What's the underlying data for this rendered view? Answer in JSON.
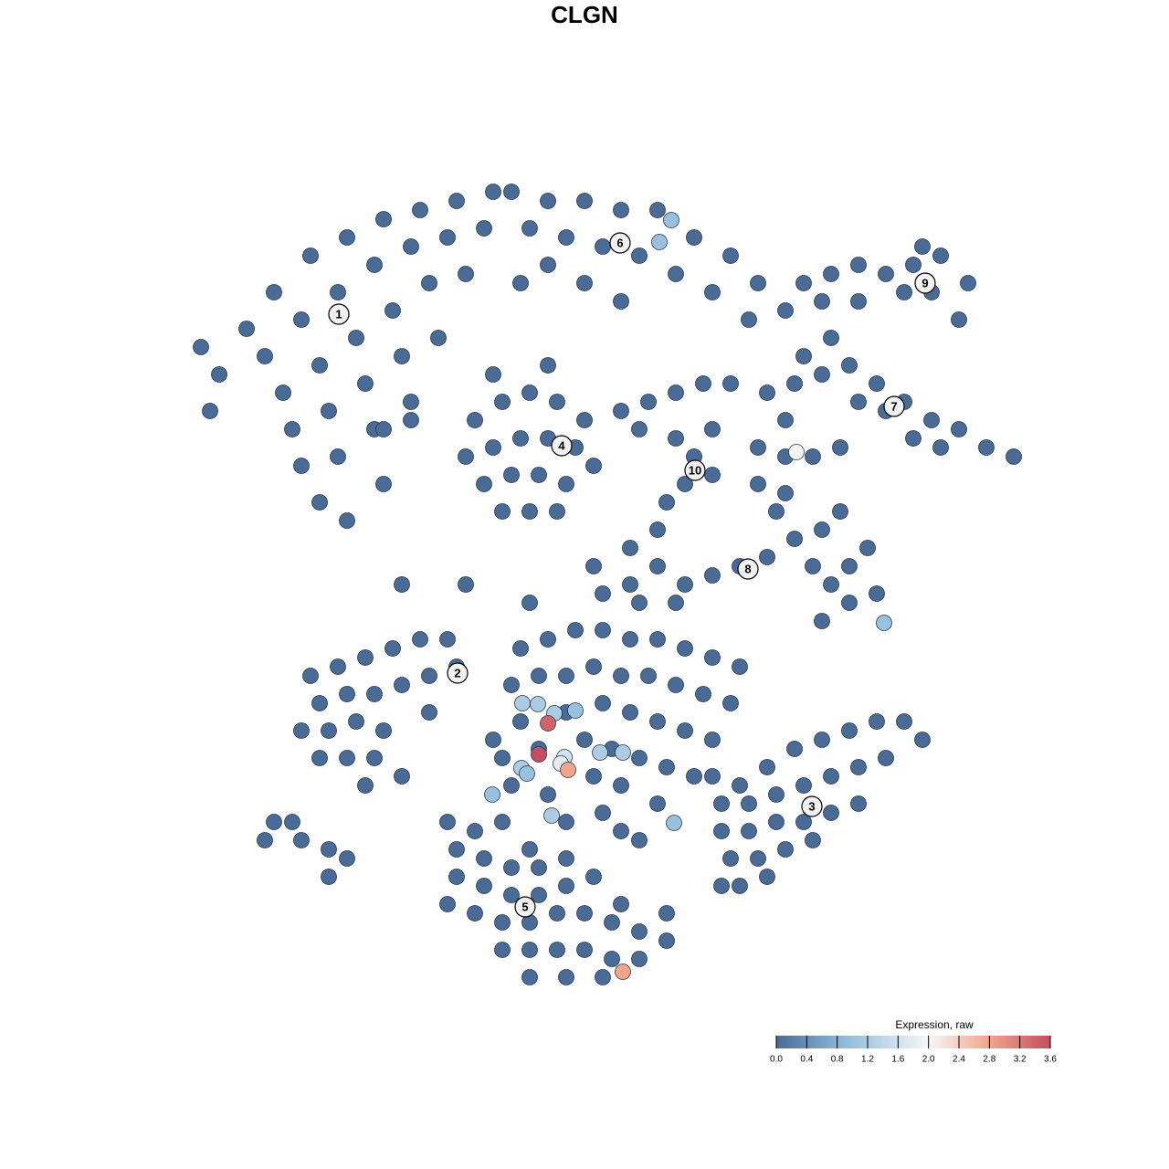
{
  "chart_data": {
    "type": "scatter",
    "title": "CLGN",
    "xlim": [
      0,
      128
    ],
    "ylim": [
      128,
      0
    ],
    "colorbar": {
      "title": "Expression, raw",
      "clim": [
        0,
        3.6
      ],
      "colorscale": [
        [
          0,
          "#4a6b95"
        ],
        [
          0.9,
          "#8fbcdb"
        ],
        [
          2.0,
          "#f7f7f7"
        ],
        [
          2.8,
          "#f0a58c"
        ],
        [
          3.6,
          "#c44e5f"
        ]
      ],
      "ticks": [
        {
          "value": 0,
          "label": "0.0"
        },
        {
          "value": 0.4,
          "label": "0.4"
        },
        {
          "value": 0.8,
          "label": "0.8"
        },
        {
          "value": 1.2,
          "label": "1.2"
        },
        {
          "value": 1.6,
          "label": "1.6"
        },
        {
          "value": 2.0,
          "label": "2.0"
        },
        {
          "value": 2.4,
          "label": "2.4"
        },
        {
          "value": 2.8,
          "label": "2.8"
        },
        {
          "value": 3.2,
          "label": "3.2"
        },
        {
          "value": 3.6,
          "label": "3.6"
        }
      ]
    },
    "annotations": [
      {
        "text": "1",
        "x": 37.1,
        "y": 34.4
      },
      {
        "text": "2",
        "x": 50.1,
        "y": 73.7
      },
      {
        "text": "3",
        "x": 88.9,
        "y": 88.3
      },
      {
        "text": "4",
        "x": 61.5,
        "y": 48.8
      },
      {
        "text": "5",
        "x": 57.5,
        "y": 99.3
      },
      {
        "text": "6",
        "x": 67.9,
        "y": 26.6
      },
      {
        "text": "7",
        "x": 97.9,
        "y": 44.5
      },
      {
        "text": "8",
        "x": 81.9,
        "y": 62.3
      },
      {
        "text": "9",
        "x": 101.3,
        "y": 31.0
      },
      {
        "text": "10",
        "x": 76.1,
        "y": 51.5
      }
    ],
    "points": {
      "x": [
        24,
        27,
        30,
        34,
        38,
        42,
        46,
        50,
        54,
        29,
        33,
        37,
        41,
        45,
        49,
        53,
        31,
        35,
        39,
        43,
        47,
        51,
        32,
        36,
        40,
        44,
        48,
        33,
        37,
        41,
        45,
        35,
        38,
        42,
        22,
        23,
        56,
        60,
        64,
        68,
        72,
        76,
        80,
        83,
        58,
        62,
        66,
        70,
        74,
        78,
        82,
        60,
        64,
        68,
        86,
        57,
        52,
        55,
        58,
        61,
        64,
        51,
        54,
        57,
        60,
        63,
        65,
        53,
        56,
        59,
        62,
        55,
        58,
        61,
        54,
        60,
        68,
        71,
        74,
        77,
        80,
        74,
        76,
        78,
        75,
        78,
        73,
        70,
        84,
        87,
        90,
        93,
        96,
        99,
        102,
        105,
        108,
        111,
        88,
        91,
        94,
        97,
        100,
        103,
        86,
        83,
        86,
        89,
        92,
        88,
        91,
        94,
        97,
        100,
        103,
        106,
        105,
        102,
        99,
        101,
        90,
        94,
        83,
        85,
        87,
        89,
        91,
        93,
        96,
        90,
        93,
        95,
        86,
        92,
        90,
        84,
        81,
        78,
        75,
        72,
        69,
        66,
        70,
        74,
        34,
        37,
        40,
        43,
        46,
        49,
        35,
        38,
        41,
        44,
        47,
        33,
        36,
        39,
        42,
        35,
        38,
        41,
        40,
        44,
        47,
        50,
        57,
        60,
        63,
        66,
        69,
        72,
        75,
        78,
        81,
        56,
        59,
        62,
        65,
        68,
        71,
        74,
        77,
        80,
        57,
        62,
        66,
        69,
        72,
        75,
        78,
        55,
        59,
        64,
        67,
        70,
        73,
        76,
        56,
        60,
        65,
        68,
        72,
        62,
        66,
        54,
        58,
        68,
        70,
        78,
        81,
        84,
        87,
        90,
        93,
        96,
        99,
        101,
        79,
        82,
        85,
        88,
        91,
        94,
        97,
        79,
        82,
        85,
        88,
        91,
        94,
        80,
        83,
        86,
        89,
        81,
        84,
        79,
        49,
        52,
        55,
        50,
        53,
        56,
        59,
        62,
        50,
        53,
        56,
        59,
        62,
        65,
        68,
        52,
        55,
        58,
        61,
        64,
        67,
        70,
        73,
        55,
        58,
        61,
        64,
        67,
        70,
        58,
        62,
        66,
        73,
        49,
        30,
        29,
        33,
        36,
        36,
        38,
        32,
        44,
        51,
        58,
        69,
        72,
        45,
        42,
        65,
        73.5,
        72.2,
        87.2,
        96.8,
        57.2,
        58.9,
        60.7,
        63.0,
        60.0,
        59.0,
        61.8,
        61.4,
        62.2,
        57.1,
        57.7,
        65.7,
        68.2,
        53.9,
        60.4,
        73.8,
        68.2
      ],
      "y": [
        41,
        36,
        32,
        28,
        26,
        24,
        23,
        22,
        21,
        39,
        35,
        32,
        29,
        27,
        26,
        25,
        43,
        40,
        37,
        34,
        31,
        30,
        47,
        45,
        42,
        39,
        37,
        51,
        50,
        47,
        44,
        55,
        57,
        53,
        38,
        45,
        21,
        22,
        22,
        23,
        23,
        26,
        28,
        31,
        25,
        26,
        27,
        28,
        30,
        32,
        35,
        29,
        31,
        33,
        34,
        31,
        46,
        44,
        43,
        44,
        46,
        50,
        49,
        48,
        48,
        49,
        51,
        53,
        52,
        52,
        53,
        56,
        56,
        56,
        41,
        40,
        45,
        44,
        43,
        42,
        42,
        48,
        50,
        47,
        53,
        52,
        55,
        47,
        43,
        42,
        41,
        40,
        42,
        44,
        46,
        47,
        49,
        50,
        39,
        37,
        44,
        45,
        48,
        49,
        46,
        49,
        50,
        50,
        49,
        31,
        30,
        29,
        30,
        29,
        28,
        31,
        35,
        32,
        32,
        27,
        33,
        33,
        53,
        56,
        59,
        62,
        64,
        66,
        65,
        58,
        62,
        60,
        54,
        56,
        68,
        61,
        62,
        63,
        64,
        62,
        64,
        65,
        66,
        66,
        74,
        73,
        72,
        71,
        70,
        70,
        77,
        76,
        76,
        75,
        74,
        80,
        80,
        79,
        80,
        83,
        83,
        83,
        86,
        85,
        78,
        73,
        71,
        70,
        69,
        69,
        70,
        70,
        71,
        72,
        73,
        75,
        74,
        74,
        73,
        74,
        74,
        75,
        76,
        77,
        79,
        78,
        77,
        78,
        79,
        80,
        81,
        83,
        82,
        81,
        82,
        83,
        84,
        85,
        86,
        87,
        85,
        86,
        88,
        90,
        89,
        81,
        93,
        91,
        92,
        85,
        86,
        84,
        82,
        81,
        80,
        79,
        79,
        81,
        88,
        88,
        87,
        86,
        85,
        84,
        83,
        91,
        91,
        90,
        90,
        89,
        88,
        94,
        94,
        93,
        92,
        97,
        96,
        97,
        90,
        91,
        90,
        93,
        94,
        95,
        95,
        94,
        96,
        97,
        98,
        98,
        97,
        96,
        99,
        100,
        101,
        101,
        100,
        100,
        101,
        102,
        103,
        104,
        104,
        104,
        104,
        105,
        105,
        107,
        107,
        107,
        100,
        99,
        90,
        92,
        92,
        93,
        96,
        94,
        90,
        64,
        64,
        66,
        60,
        58,
        46,
        47,
        62,
        24.1,
        26.5,
        49.5,
        68.2,
        77.0,
        77.1,
        78.1,
        77.8,
        79.2,
        82.6,
        82.9,
        83.6,
        84.3,
        84.1,
        84.7,
        82.4,
        82.4,
        87.0,
        89.3,
        90.1,
        106.4
      ],
      "values": [
        0,
        0,
        0,
        0,
        0,
        0,
        0,
        0,
        0,
        0,
        0,
        0,
        0,
        0,
        0,
        0,
        0,
        0,
        0,
        0,
        0,
        0,
        0,
        0,
        0,
        0,
        0,
        0,
        0,
        0,
        0,
        0,
        0,
        0,
        0,
        0,
        0,
        0,
        0,
        0,
        0,
        0,
        0,
        0,
        0,
        0,
        0,
        0,
        0,
        0,
        0,
        0,
        0,
        0,
        0,
        0,
        0,
        0,
        0,
        0,
        0,
        0,
        0,
        0,
        0,
        0,
        0,
        0,
        0,
        0,
        0,
        0,
        0,
        0,
        0,
        0,
        0,
        0,
        0,
        0,
        0,
        0,
        0,
        0,
        0,
        0,
        0,
        0,
        0,
        0,
        0,
        0,
        0,
        0,
        0,
        0,
        0,
        0,
        0,
        0,
        0,
        0,
        0,
        0,
        0,
        0,
        0,
        0,
        0,
        0,
        0,
        0,
        0,
        0,
        0,
        0,
        0,
        0,
        0,
        0,
        0,
        0,
        0,
        0,
        0,
        0,
        0,
        0,
        0,
        0,
        0,
        0,
        0,
        0,
        0,
        0,
        0,
        0,
        0,
        0,
        0,
        0,
        0,
        0,
        0,
        0,
        0,
        0,
        0,
        0,
        0,
        0,
        0,
        0,
        0,
        0,
        0,
        0,
        0,
        0,
        0,
        0,
        0,
        0,
        0,
        0,
        0,
        0,
        0,
        0,
        0,
        0,
        0,
        0,
        0,
        0,
        0,
        0,
        0,
        0,
        0,
        0,
        0,
        0,
        0,
        0,
        0,
        0,
        0,
        0,
        0,
        0,
        0,
        0,
        0,
        0,
        0,
        0,
        0,
        0,
        0,
        0,
        0,
        0,
        0,
        0,
        0,
        0,
        0,
        0,
        0,
        0,
        0,
        0,
        0,
        0,
        0,
        0,
        0,
        0,
        0,
        0,
        0,
        0,
        0,
        0,
        0,
        0,
        0,
        0,
        0,
        0,
        0,
        0,
        0,
        0,
        0,
        0,
        0,
        0,
        0,
        0,
        0,
        0,
        0,
        0,
        0,
        0,
        0,
        0,
        0,
        0,
        0,
        0,
        0,
        0,
        0,
        0,
        0,
        0,
        0,
        0,
        0,
        0,
        0,
        0,
        0,
        0,
        0,
        0,
        0,
        0,
        0,
        0,
        0,
        0,
        0,
        0,
        0,
        0,
        0,
        0,
        0,
        0,
        0,
        0,
        0,
        1.0,
        1.0,
        2.0,
        1.0,
        1.2,
        1.2,
        1.2,
        1.0,
        3.4,
        3.6,
        1.6,
        1.8,
        2.8,
        1.2,
        1.0,
        1.2,
        1.2,
        1.0,
        1.2,
        1.0,
        2.8
      ]
    }
  }
}
